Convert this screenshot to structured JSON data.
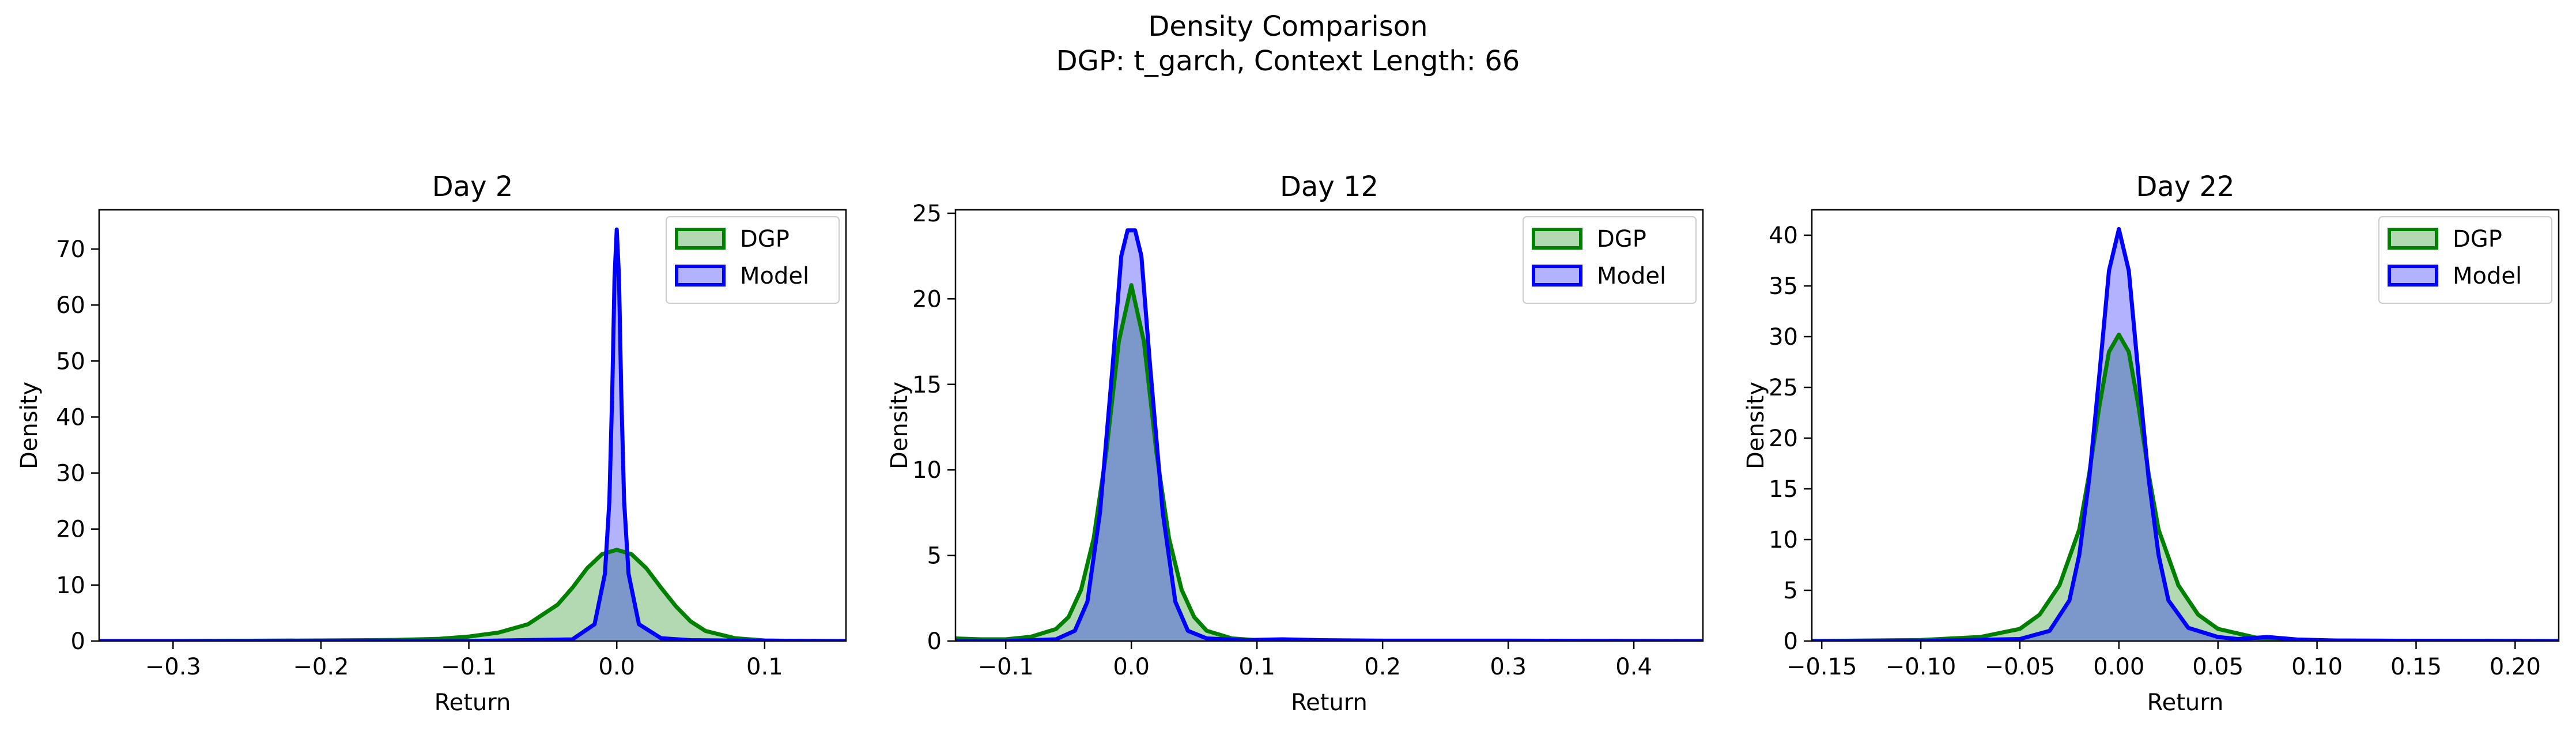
{
  "figure": {
    "suptitle_line1": "Density Comparison",
    "suptitle_line2": "DGP: t_garch, Context Length: 66"
  },
  "colors": {
    "dgp_line": "#008000",
    "dgp_fill": "#008000",
    "model_line": "#0000ff",
    "model_fill": "#0000ff"
  },
  "chart_data": [
    {
      "type": "area",
      "title": "Day 2",
      "xlabel": "Return",
      "ylabel": "Density",
      "xlim": [
        -0.35,
        0.155
      ],
      "ylim": [
        0,
        77
      ],
      "xticks": [
        -0.3,
        -0.2,
        -0.1,
        0.0,
        0.1
      ],
      "xtick_labels": [
        "−0.3",
        "−0.2",
        "−0.1",
        "0.0",
        "0.1"
      ],
      "yticks": [
        0,
        10,
        20,
        30,
        40,
        50,
        60,
        70
      ],
      "ytick_labels": [
        "0",
        "10",
        "20",
        "30",
        "40",
        "50",
        "60",
        "70"
      ],
      "legend": "top-right",
      "series": [
        {
          "name": "DGP",
          "x": [
            -0.35,
            -0.3,
            -0.25,
            -0.2,
            -0.15,
            -0.12,
            -0.1,
            -0.08,
            -0.06,
            -0.04,
            -0.03,
            -0.02,
            -0.01,
            0.0,
            0.01,
            0.02,
            0.03,
            0.04,
            0.05,
            0.06,
            0.08,
            0.1,
            0.12,
            0.155
          ],
          "y": [
            0,
            0,
            0.05,
            0.1,
            0.2,
            0.4,
            0.8,
            1.5,
            3,
            6.5,
            9.5,
            13,
            15.5,
            16.3,
            15.5,
            13,
            9.5,
            6.2,
            3.5,
            1.8,
            0.5,
            0.1,
            0.02,
            0
          ]
        },
        {
          "name": "Model",
          "x": [
            -0.35,
            -0.1,
            -0.03,
            -0.015,
            -0.008,
            -0.005,
            -0.003,
            -0.0015,
            0.0,
            0.0015,
            0.003,
            0.005,
            0.008,
            0.015,
            0.03,
            0.05,
            0.1,
            0.155
          ],
          "y": [
            0,
            0,
            0.3,
            3,
            12,
            25,
            45,
            65,
            73.5,
            65,
            45,
            25,
            12,
            3,
            0.5,
            0.15,
            0.05,
            0
          ]
        }
      ]
    },
    {
      "type": "area",
      "title": "Day 12",
      "xlabel": "Return",
      "ylabel": "Density",
      "xlim": [
        -0.14,
        0.455
      ],
      "ylim": [
        0,
        25.2
      ],
      "xticks": [
        -0.1,
        0.0,
        0.1,
        0.2,
        0.3,
        0.4
      ],
      "xtick_labels": [
        "−0.1",
        "0.0",
        "0.1",
        "0.2",
        "0.3",
        "0.4"
      ],
      "yticks": [
        0,
        5,
        10,
        15,
        20,
        25
      ],
      "ytick_labels": [
        "0",
        "5",
        "10",
        "15",
        "20",
        "25"
      ],
      "legend": "top-right",
      "series": [
        {
          "name": "DGP",
          "x": [
            -0.14,
            -0.12,
            -0.1,
            -0.08,
            -0.06,
            -0.05,
            -0.04,
            -0.03,
            -0.02,
            -0.01,
            0.0,
            0.01,
            0.02,
            0.03,
            0.04,
            0.05,
            0.06,
            0.08,
            0.1,
            0.2,
            0.3,
            0.455
          ],
          "y": [
            0.15,
            0.1,
            0.1,
            0.25,
            0.7,
            1.4,
            3,
            6,
            11,
            17.5,
            20.8,
            17.5,
            11,
            6,
            3,
            1.4,
            0.6,
            0.15,
            0.05,
            0,
            0,
            0
          ]
        },
        {
          "name": "Model",
          "x": [
            -0.14,
            -0.1,
            -0.06,
            -0.045,
            -0.035,
            -0.025,
            -0.015,
            -0.008,
            -0.003,
            0.0,
            0.003,
            0.008,
            0.015,
            0.025,
            0.035,
            0.045,
            0.06,
            0.09,
            0.12,
            0.15,
            0.2,
            0.3,
            0.455
          ],
          "y": [
            0,
            0,
            0.1,
            0.6,
            2.3,
            7.5,
            16,
            22.5,
            24,
            24,
            24,
            22.5,
            16,
            7.5,
            2.3,
            0.6,
            0.15,
            0.05,
            0.1,
            0.05,
            0.02,
            0.02,
            0
          ]
        }
      ]
    },
    {
      "type": "area",
      "title": "Day 22",
      "xlabel": "Return",
      "ylabel": "Density",
      "xlim": [
        -0.155,
        0.222
      ],
      "ylim": [
        0,
        42.5
      ],
      "xticks": [
        -0.15,
        -0.1,
        -0.05,
        0.0,
        0.05,
        0.1,
        0.15,
        0.2
      ],
      "xtick_labels": [
        "−0.15",
        "−0.10",
        "−0.05",
        "0.00",
        "0.05",
        "0.10",
        "0.15",
        "0.20"
      ],
      "yticks": [
        0,
        5,
        10,
        15,
        20,
        25,
        30,
        35,
        40
      ],
      "ytick_labels": [
        "0",
        "5",
        "10",
        "15",
        "20",
        "25",
        "30",
        "35",
        "40"
      ],
      "legend": "top-right",
      "series": [
        {
          "name": "DGP",
          "x": [
            -0.155,
            -0.1,
            -0.07,
            -0.05,
            -0.04,
            -0.03,
            -0.02,
            -0.015,
            -0.01,
            -0.005,
            0.0,
            0.005,
            0.01,
            0.015,
            0.02,
            0.03,
            0.04,
            0.05,
            0.07,
            0.1,
            0.15,
            0.222
          ],
          "y": [
            0,
            0.1,
            0.4,
            1.2,
            2.6,
            5.5,
            11,
            16.5,
            23,
            28.5,
            30.2,
            28.5,
            23,
            16.5,
            11,
            5.5,
            2.6,
            1.2,
            0.3,
            0.05,
            0.02,
            0
          ]
        },
        {
          "name": "Model",
          "x": [
            -0.155,
            -0.1,
            -0.05,
            -0.035,
            -0.025,
            -0.02,
            -0.015,
            -0.01,
            -0.005,
            0.0,
            0.005,
            0.01,
            0.015,
            0.02,
            0.025,
            0.035,
            0.05,
            0.06,
            0.075,
            0.09,
            0.11,
            0.15,
            0.222
          ],
          "y": [
            0,
            0,
            0.2,
            1,
            4,
            8.5,
            16,
            26,
            36.5,
            40.6,
            36.5,
            26,
            16,
            8.5,
            4,
            1.3,
            0.4,
            0.2,
            0.4,
            0.15,
            0.05,
            0.02,
            0
          ]
        }
      ]
    }
  ]
}
